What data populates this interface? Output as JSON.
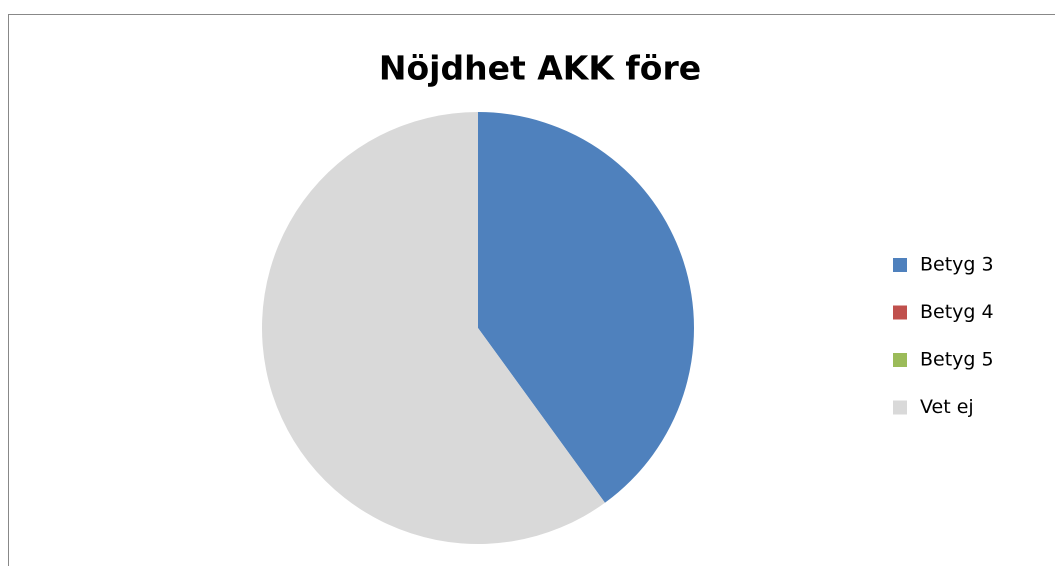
{
  "chart_data": {
    "type": "pie",
    "title": "Nöjdhet AKK före",
    "categories": [
      "Betyg 3",
      "Betyg 4",
      "Betyg 5",
      "Vet ej"
    ],
    "values": [
      40,
      0,
      0,
      60
    ],
    "colors": [
      "#4f81bd",
      "#c0504d",
      "#9bbb59",
      "#d9d9d9"
    ],
    "legend": "right"
  }
}
